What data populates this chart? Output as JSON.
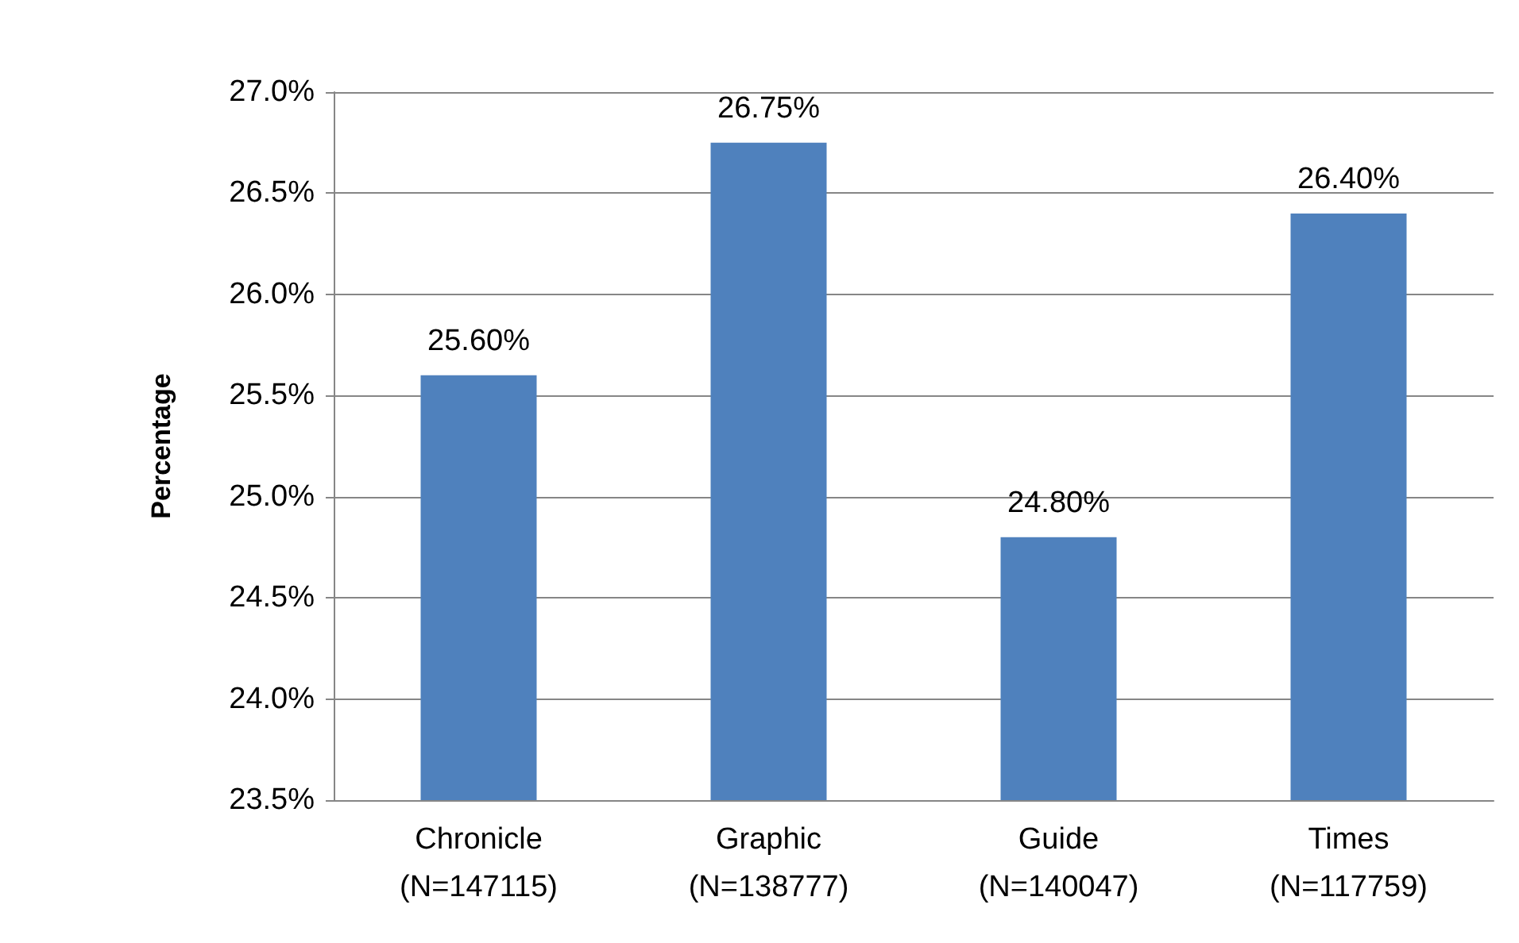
{
  "chart_data": {
    "type": "bar",
    "ylabel": "Percentage",
    "categories": [
      "Chronicle\n(N=147115)",
      "Graphic\n(N=138777)",
      "Guide\n(N=140047)",
      "Times\n(N=117759)"
    ],
    "values": [
      25.6,
      26.75,
      24.8,
      26.4
    ],
    "color": "#4f81bd",
    "value_labels": [
      "25.60%",
      "26.75%",
      "24.80%",
      "26.40%"
    ],
    "ylim": [
      23.5,
      27.0
    ],
    "yticks": [
      {
        "value": 23.5,
        "label": "23.5%"
      },
      {
        "value": 24.0,
        "label": "24.0%"
      },
      {
        "value": 24.5,
        "label": "24.5%"
      },
      {
        "value": 25.0,
        "label": "25.0%"
      },
      {
        "value": 25.5,
        "label": "25.5%"
      },
      {
        "value": 26.0,
        "label": "26.0%"
      },
      {
        "value": 26.5,
        "label": "26.5%"
      },
      {
        "value": 27.0,
        "label": "27.0%"
      }
    ],
    "grid": "y"
  }
}
